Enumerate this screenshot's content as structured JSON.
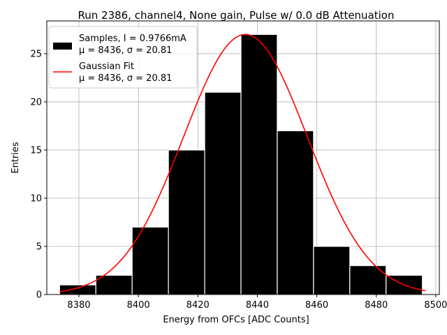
{
  "chart_data": {
    "type": "bar",
    "title": "Run 2386, channel4, None gain, Pulse w/ 0.0 dB Attenuation",
    "xlabel": "Energy from OFCs [ADC Counts]",
    "ylabel": "Entries",
    "xlim": [
      8369.2,
      8501.2
    ],
    "ylim": [
      0,
      28.4
    ],
    "xticks": [
      8380,
      8400,
      8420,
      8440,
      8460,
      8480,
      8500
    ],
    "yticks": [
      0,
      5,
      10,
      15,
      20,
      25
    ],
    "grid": true,
    "legend_position": "top-left",
    "bins": [
      {
        "x0": 8373.5,
        "x1": 8385.7,
        "count": 1
      },
      {
        "x0": 8385.7,
        "x1": 8397.9,
        "count": 2
      },
      {
        "x0": 8397.9,
        "x1": 8410.1,
        "count": 7
      },
      {
        "x0": 8410.1,
        "x1": 8422.3,
        "count": 15
      },
      {
        "x0": 8422.3,
        "x1": 8434.5,
        "count": 21
      },
      {
        "x0": 8434.5,
        "x1": 8446.7,
        "count": 27
      },
      {
        "x0": 8446.7,
        "x1": 8458.9,
        "count": 17
      },
      {
        "x0": 8458.9,
        "x1": 8471.1,
        "count": 5
      },
      {
        "x0": 8471.1,
        "x1": 8483.3,
        "count": 3
      },
      {
        "x0": 8483.3,
        "x1": 8495.5,
        "count": 2
      }
    ],
    "fit": {
      "type": "gaussian",
      "mu": 8436,
      "sigma": 20.81,
      "amplitude": 27,
      "x_range": [
        8373.5,
        8496.5
      ]
    },
    "series": [
      {
        "name": "Samples, I = 0.9766mA",
        "subtitle": "μ = 8436, σ = 20.81",
        "kind": "histogram",
        "color": "#000000"
      },
      {
        "name": "Gaussian Fit",
        "subtitle": "μ = 8436, σ = 20.81",
        "kind": "line",
        "color": "#ff0000"
      }
    ]
  }
}
